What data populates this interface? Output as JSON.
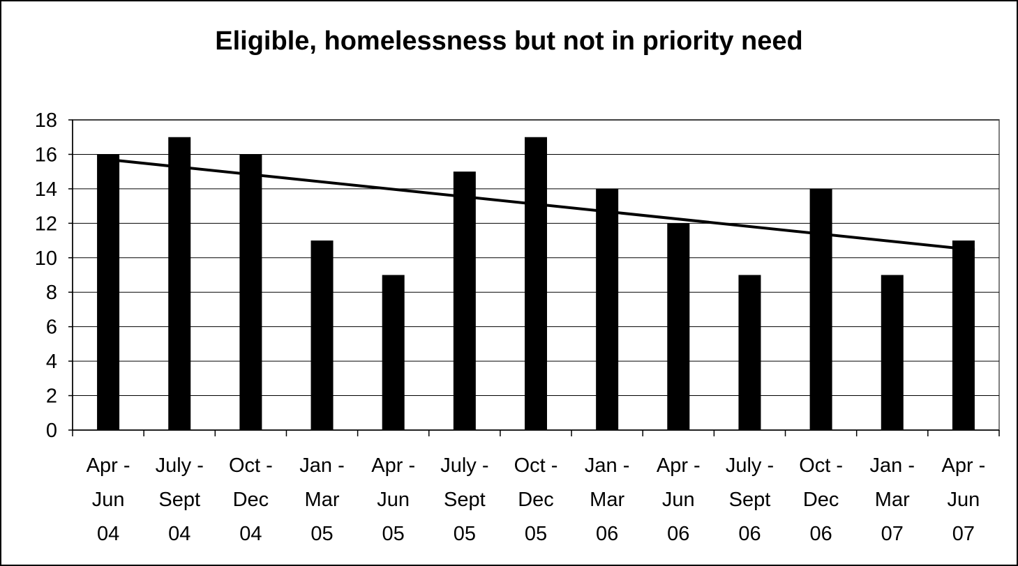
{
  "chart_data": {
    "type": "bar",
    "title": "Eligible, homelessness but not in priority need",
    "xlabel": "",
    "ylabel": "",
    "categories": [
      [
        "Apr -",
        "Jun",
        "04"
      ],
      [
        "July -",
        "Sept",
        "04"
      ],
      [
        "Oct -",
        "Dec",
        "04"
      ],
      [
        "Jan -",
        "Mar",
        "05"
      ],
      [
        "Apr -",
        "Jun",
        "05"
      ],
      [
        "July -",
        "Sept",
        "05"
      ],
      [
        "Oct -",
        "Dec",
        "05"
      ],
      [
        "Jan -",
        "Mar",
        "06"
      ],
      [
        "Apr -",
        "Jun",
        "06"
      ],
      [
        "July -",
        "Sept",
        "06"
      ],
      [
        "Oct -",
        "Dec",
        "06"
      ],
      [
        "Jan -",
        "Mar",
        "07"
      ],
      [
        "Apr -",
        "Jun",
        "07"
      ]
    ],
    "values": [
      16,
      17,
      16,
      11,
      9,
      15,
      17,
      14,
      12,
      9,
      14,
      9,
      11
    ],
    "ylim": [
      0,
      18
    ],
    "yticks": [
      0,
      2,
      4,
      6,
      8,
      10,
      12,
      14,
      16,
      18
    ],
    "grid": true,
    "legend": "none",
    "trendline": {
      "type": "linear",
      "start": 15.7,
      "end": 10.5
    },
    "colors": {
      "bar": "#000000",
      "trend": "#000000",
      "grid": "#000000",
      "plot_border": "#808080"
    }
  }
}
